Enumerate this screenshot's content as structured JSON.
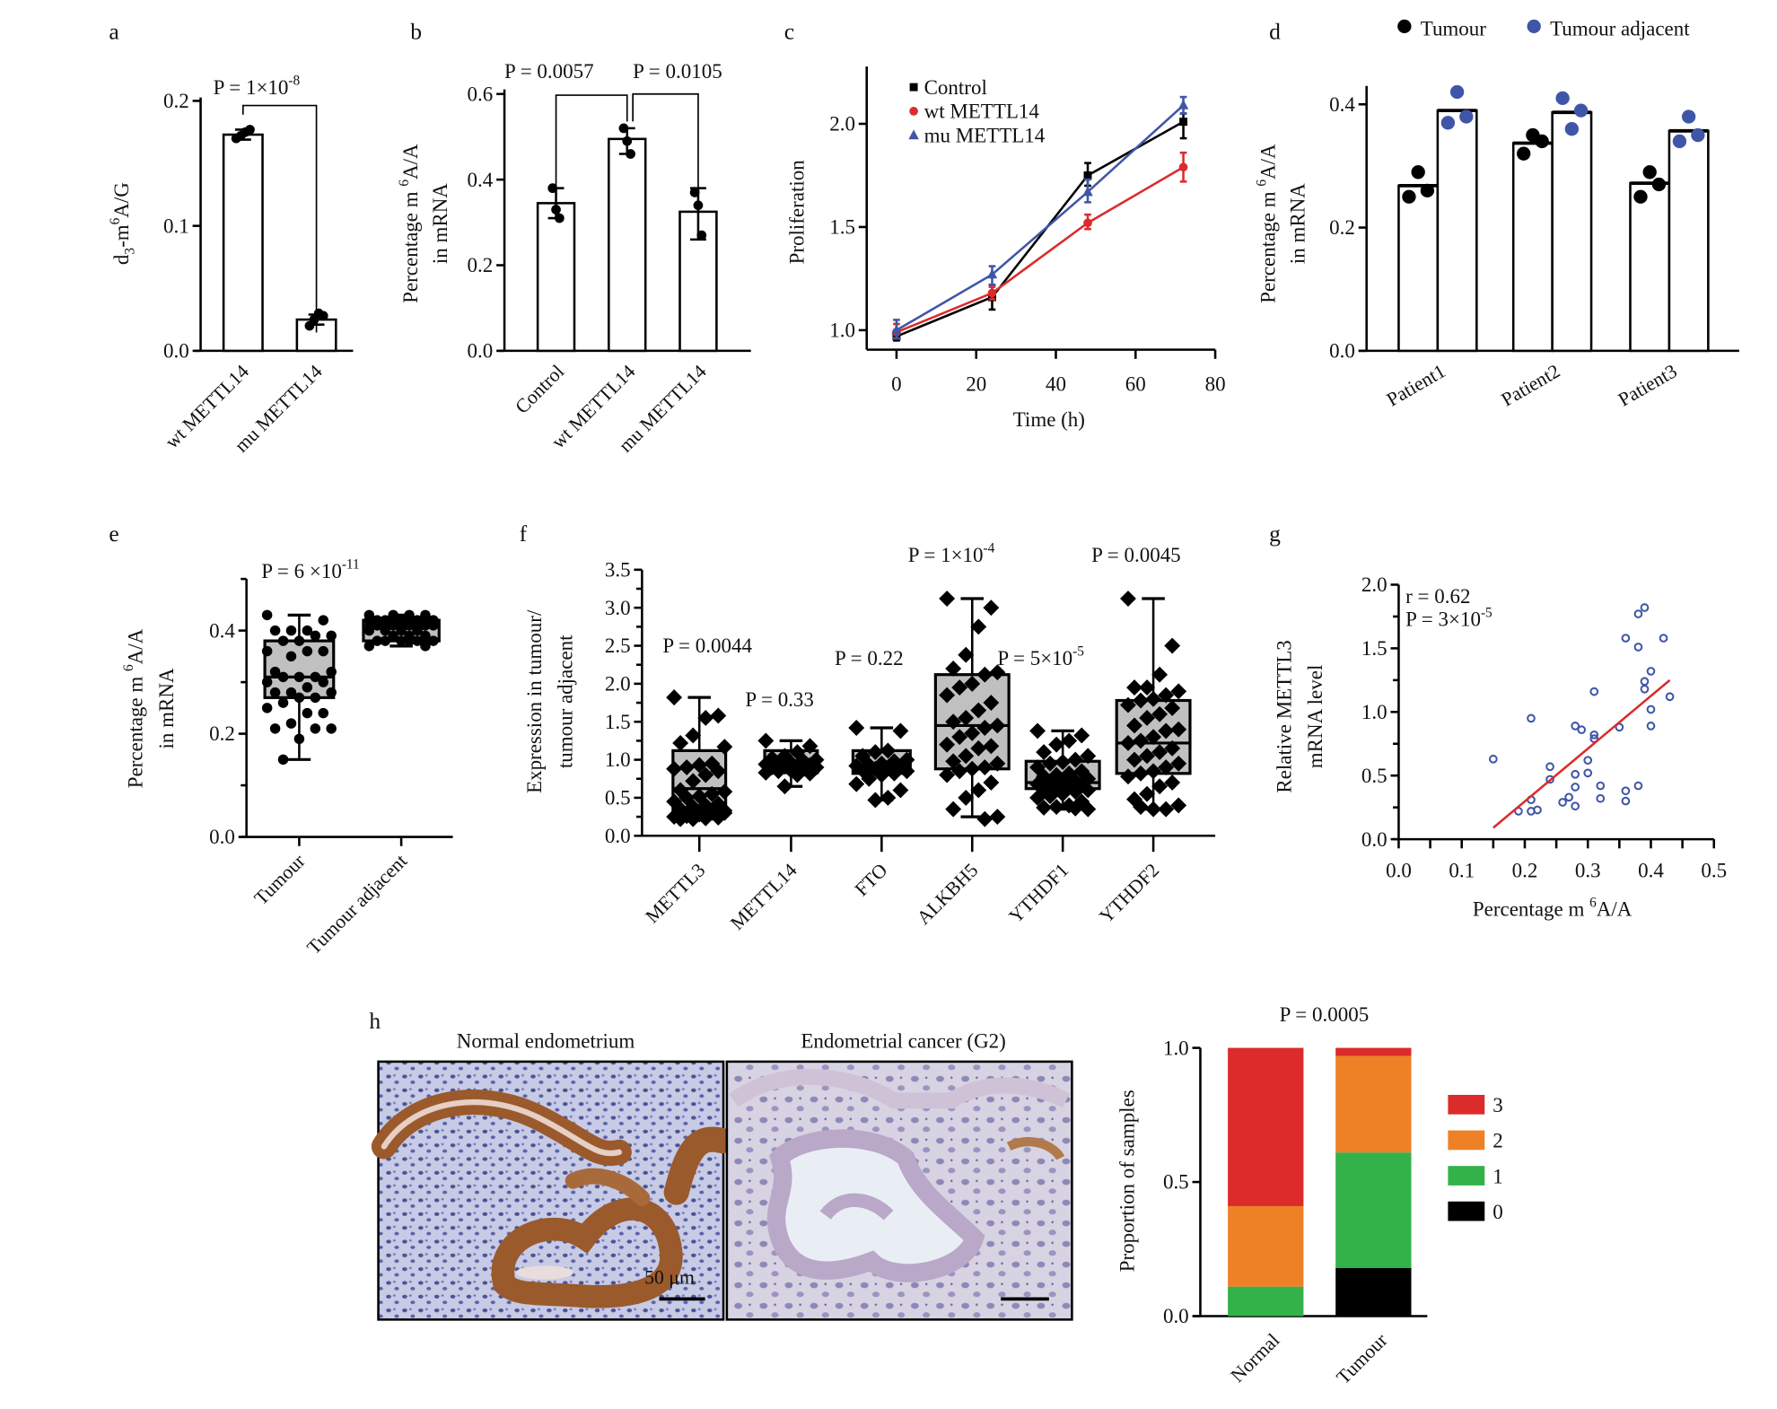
{
  "panel_labels": {
    "a": "a",
    "b": "b",
    "c": "c",
    "d": "d",
    "e": "e",
    "f": "f",
    "g": "g",
    "h": "h"
  },
  "colors": {
    "red": "#dc2b2b",
    "orange": "#ee8126",
    "green": "#33b24a",
    "blue": "#3f56a8",
    "black": "#000000",
    "box_fill": "#c0c0c0"
  },
  "histology": {
    "left_title": "Normal endometrium",
    "right_title": "Endometrial cancer (G2)",
    "scale_bar": "50 μm"
  },
  "chart_data": [
    {
      "panel": "a",
      "type": "bar",
      "categories": [
        "wt METTL14",
        "mu METTL14"
      ],
      "values": [
        0.173,
        0.025
      ],
      "points": [
        [
          0.17,
          0.172,
          0.175,
          0.177
        ],
        [
          0.02,
          0.025,
          0.03,
          0.028
        ]
      ],
      "error": [
        [
          0.169,
          0.177
        ],
        [
          0.021,
          0.029
        ]
      ],
      "ylim": [
        0,
        0.2
      ],
      "yticks": [
        "0.0",
        "0.1",
        "0.2"
      ],
      "ylabel": [
        {
          "t": "d",
          "s": ""
        },
        {
          "t": "3",
          "s": "sub"
        },
        {
          "t": "-m",
          "s": ""
        },
        {
          "t": "6",
          "s": "sup"
        },
        {
          "t": "A/G",
          "s": ""
        }
      ],
      "annotations": [
        [
          {
            "t": "P = 1×10",
            "s": ""
          },
          {
            "t": "-8",
            "s": "sup"
          }
        ]
      ]
    },
    {
      "panel": "b",
      "type": "bar",
      "categories": [
        "Control",
        "wt METTL14",
        "mu METTL14"
      ],
      "values": [
        0.345,
        0.495,
        0.325
      ],
      "points": [
        [
          0.38,
          0.33,
          0.31
        ],
        [
          0.52,
          0.49,
          0.46
        ],
        [
          0.37,
          0.34,
          0.27
        ]
      ],
      "error": [
        [
          0.31,
          0.38
        ],
        [
          0.46,
          0.52
        ],
        [
          0.26,
          0.38
        ]
      ],
      "ylim": [
        0,
        0.6
      ],
      "yticks": [
        "0.0",
        "0.2",
        "0.4",
        "0.6"
      ],
      "ylabel": [
        {
          "t": "Percentage m ",
          "s": ""
        },
        {
          "t": "6",
          "s": "sup"
        },
        {
          "t": "A/A",
          "s": ""
        }
      ],
      "ylabel2": "in mRNA",
      "annotations": [
        [
          {
            "t": "P = 0.0057",
            "s": ""
          }
        ],
        [
          {
            "t": "P = 0.0105",
            "s": ""
          }
        ]
      ]
    },
    {
      "panel": "c",
      "type": "line",
      "x": [
        0,
        24,
        48,
        72
      ],
      "xlim": [
        0,
        80
      ],
      "xticks": [
        "0",
        "20",
        "40",
        "60",
        "80"
      ],
      "ylim": [
        0.9,
        2.2
      ],
      "yticks": [
        "1.0",
        "1.5",
        "2.0"
      ],
      "xlabel": "Time (h)",
      "ylabel": "Proliferation",
      "legend": "top-left",
      "series": [
        {
          "name": "Control",
          "marker": "square",
          "color": "#000000",
          "values": [
            0.97,
            1.16,
            1.75,
            2.01
          ],
          "err": [
            [
              0.95,
              1.0
            ],
            [
              1.1,
              1.22
            ],
            [
              1.7,
              1.81
            ],
            [
              1.93,
              2.05
            ]
          ]
        },
        {
          "name": "wt METTL14",
          "marker": "circle",
          "color": "#dc2b2b",
          "values": [
            0.99,
            1.18,
            1.52,
            1.79
          ],
          "err": [
            [
              0.96,
              1.03
            ],
            [
              1.15,
              1.21
            ],
            [
              1.49,
              1.56
            ],
            [
              1.72,
              1.86
            ]
          ]
        },
        {
          "name": "mu METTL14",
          "marker": "triangle",
          "color": "#3f56a8",
          "values": [
            1.0,
            1.27,
            1.67,
            2.09
          ],
          "err": [
            [
              0.96,
              1.05
            ],
            [
              1.22,
              1.31
            ],
            [
              1.62,
              1.73
            ],
            [
              2.05,
              2.13
            ]
          ]
        }
      ]
    },
    {
      "panel": "d",
      "type": "bar",
      "categories": [
        "Patient1",
        "Patient2",
        "Patient3"
      ],
      "ylim": [
        0,
        0.43
      ],
      "yticks": [
        "0.0",
        "0.2",
        "0.4"
      ],
      "ylabel": [
        {
          "t": "Percentage m ",
          "s": ""
        },
        {
          "t": "6",
          "s": "sup"
        },
        {
          "t": "A/A",
          "s": ""
        }
      ],
      "ylabel2": "in mRNA",
      "legend": "top",
      "series": [
        {
          "name": "Tumour",
          "color": "#000000",
          "values": [
            0.268,
            0.337,
            0.272
          ],
          "points": [
            [
              0.25,
              0.29,
              0.26
            ],
            [
              0.32,
              0.35,
              0.34
            ],
            [
              0.25,
              0.29,
              0.27
            ]
          ]
        },
        {
          "name": "Tumour adjacent",
          "color": "#3f56a8",
          "values": [
            0.39,
            0.387,
            0.357
          ],
          "points": [
            [
              0.37,
              0.42,
              0.38
            ],
            [
              0.41,
              0.36,
              0.39
            ],
            [
              0.34,
              0.38,
              0.35
            ]
          ]
        }
      ]
    },
    {
      "panel": "e",
      "type": "box",
      "categories": [
        "Tumour",
        "Tumour adjacent"
      ],
      "ylim": [
        0,
        0.5
      ],
      "yticks": [
        "0.0",
        "0.2",
        "0.4"
      ],
      "ylabel": [
        {
          "t": "Percentage m ",
          "s": ""
        },
        {
          "t": "6",
          "s": "sup"
        },
        {
          "t": "A/A",
          "s": ""
        }
      ],
      "ylabel2": "in mRNA",
      "boxes": [
        {
          "min": 0.15,
          "q1": 0.27,
          "median": 0.31,
          "q3": 0.38,
          "max": 0.43
        },
        {
          "min": 0.37,
          "q1": 0.38,
          "median": 0.41,
          "q3": 0.42,
          "max": 0.43
        }
      ],
      "points": [
        [
          0.43,
          0.42,
          0.4,
          0.4,
          0.4,
          0.39,
          0.39,
          0.38,
          0.38,
          0.36,
          0.36,
          0.36,
          0.35,
          0.32,
          0.32,
          0.31,
          0.31,
          0.31,
          0.3,
          0.3,
          0.29,
          0.28,
          0.28,
          0.28,
          0.27,
          0.27,
          0.26,
          0.25,
          0.24,
          0.24,
          0.22,
          0.21,
          0.21,
          0.21,
          0.19,
          0.15
        ],
        [
          0.43,
          0.43,
          0.43,
          0.43,
          0.42,
          0.42,
          0.42,
          0.42,
          0.42,
          0.42,
          0.41,
          0.41,
          0.41,
          0.41,
          0.41,
          0.4,
          0.4,
          0.4,
          0.4,
          0.39,
          0.39,
          0.39,
          0.38,
          0.38,
          0.38,
          0.38,
          0.38,
          0.37,
          0.37,
          0.38
        ]
      ],
      "annotations": [
        [
          {
            "t": "P = 6 ×10",
            "s": ""
          },
          {
            "t": "-11",
            "s": "sup"
          }
        ]
      ]
    },
    {
      "panel": "f",
      "type": "box",
      "categories": [
        "METTL3",
        "METTL14",
        "FTO",
        "ALKBH5",
        "YTHDF1",
        "YTHDF2"
      ],
      "ylim": [
        0,
        3.5
      ],
      "yticks": [
        "0.0",
        "0.5",
        "1.0",
        "1.5",
        "2.0",
        "2.5",
        "3.0",
        "3.5"
      ],
      "ylabel": [
        {
          "t": "Expression in tumour/",
          "s": ""
        }
      ],
      "ylabel2": "tumour adjacent",
      "boxes": [
        {
          "min": 0.22,
          "q1": 0.33,
          "median": 0.62,
          "q3": 1.12,
          "max": 1.82
        },
        {
          "min": 0.65,
          "q1": 0.83,
          "median": 0.95,
          "q3": 1.12,
          "max": 1.25
        },
        {
          "min": 0.47,
          "q1": 0.82,
          "median": 0.92,
          "q3": 1.12,
          "max": 1.42
        },
        {
          "min": 0.25,
          "q1": 0.88,
          "median": 1.45,
          "q3": 2.12,
          "max": 3.12
        },
        {
          "min": 0.35,
          "q1": 0.62,
          "median": 0.7,
          "q3": 0.98,
          "max": 1.38
        },
        {
          "min": 0.35,
          "q1": 0.82,
          "median": 1.22,
          "q3": 1.78,
          "max": 3.12
        }
      ],
      "points": [
        [
          1.82,
          1.58,
          1.55,
          1.32,
          1.22,
          1.17,
          0.95,
          0.93,
          0.9,
          0.88,
          0.85,
          0.8,
          0.72,
          0.6,
          0.58,
          0.55,
          0.52,
          0.5,
          0.45,
          0.42,
          0.4,
          0.38,
          0.35,
          0.33,
          0.3,
          0.28,
          0.26,
          0.25,
          0.24,
          0.23,
          0.22,
          0.22,
          0.3
        ],
        [
          1.25,
          1.18,
          1.1,
          1.05,
          1.02,
          1.0,
          0.98,
          0.96,
          0.95,
          0.94,
          0.93,
          0.92,
          0.91,
          0.9,
          0.9,
          0.88,
          0.86,
          0.85,
          0.83,
          0.82,
          0.8,
          0.65
        ],
        [
          1.42,
          1.38,
          1.12,
          1.1,
          1.05,
          1.0,
          0.98,
          0.95,
          0.93,
          0.92,
          0.91,
          0.9,
          0.88,
          0.86,
          0.85,
          0.82,
          0.8,
          0.75,
          0.68,
          0.6,
          0.5,
          0.47
        ],
        [
          3.12,
          3.0,
          2.75,
          2.38,
          2.2,
          2.15,
          2.12,
          2.0,
          1.95,
          1.85,
          1.75,
          1.65,
          1.55,
          1.5,
          1.45,
          1.42,
          1.35,
          1.3,
          1.2,
          1.18,
          1.15,
          1.05,
          0.98,
          0.95,
          0.9,
          0.88,
          0.85,
          0.8,
          0.7,
          0.6,
          0.5,
          0.35,
          0.25,
          0.22
        ],
        [
          1.38,
          1.32,
          1.25,
          1.2,
          1.1,
          1.05,
          1.0,
          0.97,
          0.95,
          0.9,
          0.85,
          0.82,
          0.8,
          0.78,
          0.75,
          0.72,
          0.7,
          0.7,
          0.68,
          0.66,
          0.65,
          0.63,
          0.62,
          0.6,
          0.58,
          0.55,
          0.52,
          0.5,
          0.45,
          0.4,
          0.38,
          0.37,
          0.35,
          0.36
        ],
        [
          3.12,
          2.5,
          2.12,
          1.95,
          1.95,
          1.9,
          1.85,
          1.8,
          1.78,
          1.72,
          1.68,
          1.6,
          1.55,
          1.45,
          1.4,
          1.38,
          1.3,
          1.25,
          1.22,
          1.15,
          1.1,
          1.05,
          1.0,
          0.95,
          0.9,
          0.85,
          0.82,
          0.78,
          0.7,
          0.65,
          0.55,
          0.48,
          0.4,
          0.35,
          0.35,
          0.38
        ]
      ],
      "annotations": [
        [
          {
            "t": "P = 0.0044",
            "s": ""
          }
        ],
        [
          {
            "t": "P = 0.33",
            "s": ""
          }
        ],
        [
          {
            "t": "P = 0.22",
            "s": ""
          }
        ],
        [
          {
            "t": "P = 1×10",
            "s": ""
          },
          {
            "t": "-4",
            "s": "sup"
          }
        ],
        [
          {
            "t": "P =  5×10",
            "s": ""
          },
          {
            "t": "-5",
            "s": "sup"
          }
        ],
        [
          {
            "t": "P = 0.0045",
            "s": ""
          }
        ]
      ]
    },
    {
      "panel": "g",
      "type": "scatter",
      "xlim": [
        0,
        0.5
      ],
      "xticks": [
        "0.0",
        "0.1",
        "0.2",
        "0.3",
        "0.4",
        "0.5"
      ],
      "ylim": [
        0,
        2.0
      ],
      "yticks": [
        "0.0",
        "0.5",
        "1.0",
        "1.5",
        "2.0"
      ],
      "xlabel": [
        {
          "t": "Percentage m ",
          "s": ""
        },
        {
          "t": "6",
          "s": "sup"
        },
        {
          "t": "A/A",
          "s": ""
        }
      ],
      "ylabel": [
        {
          "t": "Relative METTL3",
          "s": ""
        }
      ],
      "ylabel2": "mRNA level",
      "points": [
        [
          0.15,
          0.63
        ],
        [
          0.21,
          0.95
        ],
        [
          0.19,
          0.22
        ],
        [
          0.21,
          0.31
        ],
        [
          0.21,
          0.22
        ],
        [
          0.22,
          0.23
        ],
        [
          0.24,
          0.57
        ],
        [
          0.24,
          0.47
        ],
        [
          0.26,
          0.29
        ],
        [
          0.27,
          0.33
        ],
        [
          0.28,
          0.89
        ],
        [
          0.29,
          0.86
        ],
        [
          0.28,
          0.51
        ],
        [
          0.28,
          0.41
        ],
        [
          0.28,
          0.26
        ],
        [
          0.3,
          0.62
        ],
        [
          0.3,
          0.52
        ],
        [
          0.31,
          1.16
        ],
        [
          0.31,
          0.82
        ],
        [
          0.31,
          0.79
        ],
        [
          0.32,
          0.42
        ],
        [
          0.32,
          0.32
        ],
        [
          0.35,
          0.88
        ],
        [
          0.36,
          1.58
        ],
        [
          0.36,
          0.38
        ],
        [
          0.36,
          0.3
        ],
        [
          0.38,
          1.77
        ],
        [
          0.39,
          1.82
        ],
        [
          0.38,
          1.51
        ],
        [
          0.39,
          1.24
        ],
        [
          0.39,
          1.18
        ],
        [
          0.38,
          0.42
        ],
        [
          0.4,
          1.32
        ],
        [
          0.4,
          1.02
        ],
        [
          0.4,
          0.89
        ],
        [
          0.42,
          1.58
        ],
        [
          0.43,
          1.12
        ]
      ],
      "fit": [
        [
          0.15,
          0.09
        ],
        [
          0.43,
          1.25
        ]
      ],
      "point_color": "#3f56a8",
      "fit_color": "#dc2b2b",
      "annotations": [
        [
          {
            "t": "r = 0.62",
            "s": ""
          }
        ],
        [
          {
            "t": "P = 3×10",
            "s": ""
          },
          {
            "t": "-5",
            "s": "sup"
          }
        ]
      ]
    },
    {
      "panel": "h",
      "type": "bar",
      "stacked": true,
      "categories": [
        "Normal",
        "Tumour"
      ],
      "ylim": [
        0,
        1.0
      ],
      "yticks": [
        "0.0",
        "0.5",
        "1.0"
      ],
      "ylabel": "Proportion of samples",
      "legend": "right",
      "series": [
        {
          "name": "0",
          "color": "#000000",
          "values": [
            0.0,
            0.18
          ]
        },
        {
          "name": "1",
          "color": "#33b24a",
          "values": [
            0.11,
            0.43
          ]
        },
        {
          "name": "2",
          "color": "#ee8126",
          "values": [
            0.3,
            0.36
          ]
        },
        {
          "name": "3",
          "color": "#dc2b2b",
          "values": [
            0.59,
            0.03
          ]
        }
      ],
      "annotations": [
        [
          {
            "t": "P = 0.0005",
            "s": ""
          }
        ]
      ]
    }
  ]
}
